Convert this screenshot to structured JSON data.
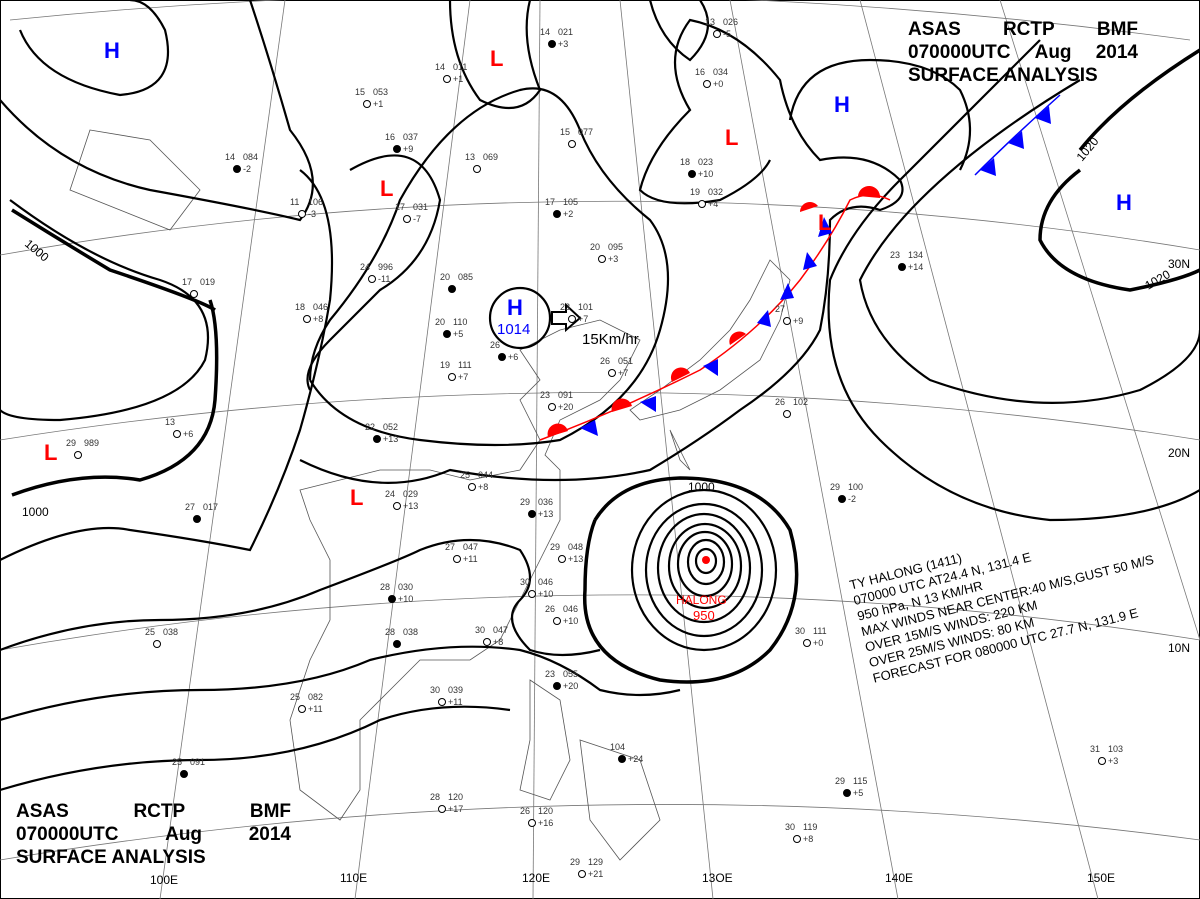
{
  "header_top": {
    "line1": [
      "ASAS",
      "RCTP",
      "BMF"
    ],
    "line2": [
      "070000UTC",
      "Aug",
      "2014"
    ],
    "line3": "SURFACE  ANALYSIS"
  },
  "header_bottom": {
    "line1": [
      "ASAS",
      "RCTP",
      "BMF"
    ],
    "line2": [
      "070000UTC",
      "Aug",
      "2014"
    ],
    "line3": "SURFACE  ANALYSIS"
  },
  "colors": {
    "high": "#0000ff",
    "low": "#ff0000",
    "warm_front": "#ff0000",
    "cold_front": "#0000ff",
    "isobar": "#000000"
  },
  "pressure_systems": [
    {
      "type": "H",
      "color": "blue"
    },
    {
      "type": "H",
      "color": "blue"
    },
    {
      "type": "H",
      "color": "blue"
    },
    {
      "type": "H",
      "color": "blue",
      "value": "1014"
    },
    {
      "type": "L",
      "color": "red"
    },
    {
      "type": "L",
      "color": "red"
    },
    {
      "type": "L",
      "color": "red"
    },
    {
      "type": "L",
      "color": "red"
    },
    {
      "type": "L",
      "color": "red"
    },
    {
      "type": "L",
      "color": "red"
    }
  ],
  "isobar_labels": [
    "1000",
    "1000",
    "1020",
    "1020",
    "1000"
  ],
  "grid_labels": {
    "lon": [
      "100E",
      "110E",
      "120E",
      "13OE",
      "140E",
      "150E"
    ],
    "lat": [
      "30N",
      "20N",
      "10N"
    ]
  },
  "motion": {
    "speed": "15Km/hr",
    "icon": "arrow-right-icon"
  },
  "typhoon": {
    "name_label": "HALONG",
    "pressure_label": "950",
    "bulletin": [
      "TY  HALONG  (1411)",
      "070000 UTC  AT24.4 N, 131.4 E",
      "950 hPa, N  13 KM/HR",
      "MAX WINDS NEAR CENTER:40 M/S,GUST 50 M/S",
      "OVER 15M/S WINDS: 220 KM",
      "OVER 25M/S WINDS: 80 KM",
      "FORECAST FOR 080000 UTC 27.7 N, 131.9 E"
    ]
  },
  "stations": [
    {
      "t": "14",
      "p": "021",
      "d": "+3"
    },
    {
      "t": "14",
      "p": "011",
      "d": "+1"
    },
    {
      "t": "15",
      "p": "053",
      "d": "+1"
    },
    {
      "t": "16",
      "p": "037",
      "d": "+9"
    },
    {
      "t": "15",
      "p": "077",
      "d": ""
    },
    {
      "t": "13",
      "p": "069",
      "d": ""
    },
    {
      "t": "14",
      "p": "084",
      "d": "-2"
    },
    {
      "t": "11",
      "p": "106",
      "d": "-3"
    },
    {
      "t": "17",
      "p": "031",
      "d": "-7"
    },
    {
      "t": "17",
      "p": "105",
      "d": "+2"
    },
    {
      "t": "20",
      "p": "095",
      "d": "+3"
    },
    {
      "t": "24",
      "p": "996",
      "d": "-11"
    },
    {
      "t": "20",
      "p": "085",
      "d": ""
    },
    {
      "t": "18",
      "p": "046",
      "d": "+8"
    },
    {
      "t": "17",
      "p": "019",
      "d": ""
    },
    {
      "t": "20",
      "p": "110",
      "d": "+5"
    },
    {
      "t": "19",
      "p": "111",
      "d": "+7"
    },
    {
      "t": "23",
      "p": "101",
      "d": "+7"
    },
    {
      "t": "26",
      "p": "",
      "d": "+6"
    },
    {
      "t": "26",
      "p": "051",
      "d": "+7"
    },
    {
      "t": "23",
      "p": "091",
      "d": "+20"
    },
    {
      "t": "22",
      "p": "052",
      "d": "+13"
    },
    {
      "t": "13",
      "p": "",
      "d": "+6"
    },
    {
      "t": "29",
      "p": "989",
      "d": ""
    },
    {
      "t": "27",
      "p": "017",
      "d": ""
    },
    {
      "t": "25",
      "p": "044",
      "d": "+8"
    },
    {
      "t": "24",
      "p": "029",
      "d": "+13"
    },
    {
      "t": "29",
      "p": "036",
      "d": "+13"
    },
    {
      "t": "27",
      "p": "047",
      "d": "+11"
    },
    {
      "t": "29",
      "p": "048",
      "d": "+13"
    },
    {
      "t": "28",
      "p": "030",
      "d": "+10"
    },
    {
      "t": "30",
      "p": "046",
      "d": "+10"
    },
    {
      "t": "26",
      "p": "046",
      "d": "+10"
    },
    {
      "t": "28",
      "p": "038",
      "d": ""
    },
    {
      "t": "30",
      "p": "047",
      "d": "+8"
    },
    {
      "t": "25",
      "p": "038",
      "d": ""
    },
    {
      "t": "23",
      "p": "055",
      "d": "+20"
    },
    {
      "t": "25",
      "p": "082",
      "d": "+11"
    },
    {
      "t": "30",
      "p": "039",
      "d": "+11"
    },
    {
      "t": "25",
      "p": "091",
      "d": ""
    },
    {
      "t": "28",
      "p": "120",
      "d": "+17"
    },
    {
      "t": "26",
      "p": "120",
      "d": "+16"
    },
    {
      "t": "104",
      "p": "",
      "d": "+24"
    },
    {
      "t": "29",
      "p": "129",
      "d": "+21"
    },
    {
      "t": "30",
      "p": "111",
      "d": "+0"
    },
    {
      "t": "29",
      "p": "115",
      "d": "+5"
    },
    {
      "t": "30",
      "p": "119",
      "d": "+8"
    },
    {
      "t": "31",
      "p": "103",
      "d": "+3"
    },
    {
      "t": "29",
      "p": "100",
      "d": "-2"
    },
    {
      "t": "26",
      "p": "102",
      "d": ""
    },
    {
      "t": "19",
      "p": "032",
      "d": "+4"
    },
    {
      "t": "18",
      "p": "023",
      "d": "+10"
    },
    {
      "t": "16",
      "p": "034",
      "d": "+0"
    },
    {
      "t": "13",
      "p": "026",
      "d": "-5"
    },
    {
      "t": "23",
      "p": "134",
      "d": "+14"
    },
    {
      "t": "27",
      "p": "",
      "d": "+9"
    }
  ]
}
